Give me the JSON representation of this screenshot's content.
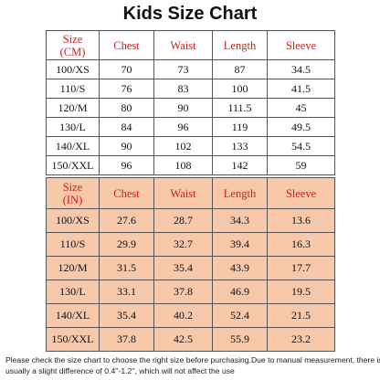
{
  "title": "Kids Size Chart",
  "tables": [
    {
      "header": [
        [
          "Size",
          "(CM)"
        ],
        "Chest",
        "Waist",
        "Length",
        "Sleeve"
      ],
      "rows": [
        [
          "100/XS",
          "70",
          "73",
          "87",
          "34.5"
        ],
        [
          "110/S",
          "76",
          "83",
          "100",
          "41.5"
        ],
        [
          "120/M",
          "80",
          "90",
          "111.5",
          "45"
        ],
        [
          "130/L",
          "84",
          "96",
          "119",
          "49.5"
        ],
        [
          "140/XL",
          "90",
          "102",
          "133",
          "54.5"
        ],
        [
          "150/XXL",
          "96",
          "108",
          "142",
          "59"
        ]
      ]
    },
    {
      "header": [
        [
          "Size",
          "(IN)"
        ],
        "Chest",
        "Waist",
        "Length",
        "Sleeve"
      ],
      "rows": [
        [
          "100/XS",
          "27.6",
          "28.7",
          "34.3",
          "13.6"
        ],
        [
          "110/S",
          "29.9",
          "32.7",
          "39.4",
          "16.3"
        ],
        [
          "120/M",
          "31.5",
          "35.4",
          "43.9",
          "17.7"
        ],
        [
          "130/L",
          "33.1",
          "37.8",
          "46.9",
          "19.5"
        ],
        [
          "140/XL",
          "35.4",
          "40.2",
          "52.4",
          "21.5"
        ],
        [
          "150/XXL",
          "37.8",
          "42.5",
          "55.9",
          "23.2"
        ]
      ]
    }
  ],
  "footnote": [
    "Please check the size chart to choose the right size before purchasing.Due to manual measurement, there is",
    "usually a slight difference of 0.4''-1.2'', which will not affect the use"
  ]
}
